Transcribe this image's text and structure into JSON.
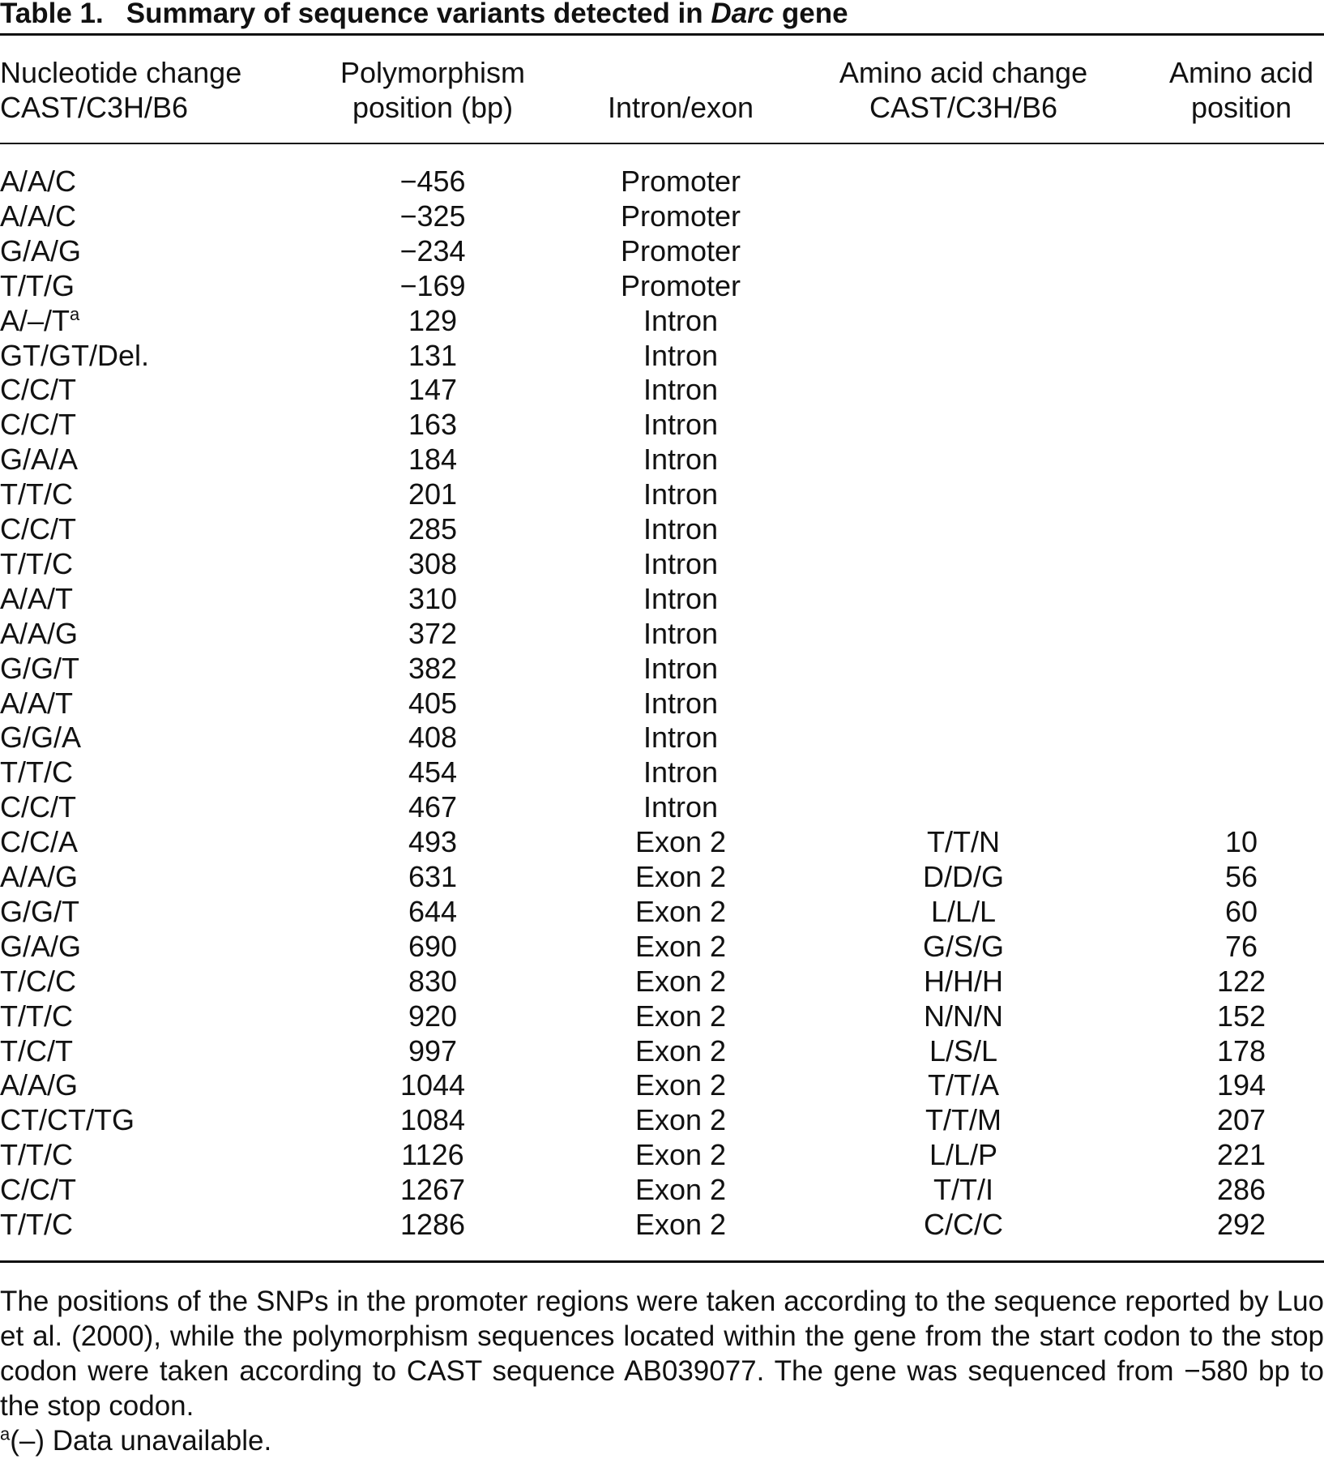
{
  "title": {
    "label": "Table 1.",
    "before": "Summary of sequence variants detected in ",
    "italic": "Darc",
    "after": " gene"
  },
  "table": {
    "header": [
      [
        "Nucleotide change",
        "CAST/C3H/B6"
      ],
      [
        "Polymorphism",
        "position (bp)"
      ],
      [
        "Intron/exon"
      ],
      [
        "Amino acid change",
        "CAST/C3H/B6"
      ],
      [
        "Amino acid",
        "position"
      ]
    ],
    "rows": [
      [
        "A/A/C",
        "−456",
        "Promoter"
      ],
      [
        "A/A/C",
        "−325",
        "Promoter"
      ],
      [
        "G/A/G",
        "−234",
        "Promoter"
      ],
      [
        "T/T/G",
        "−169",
        "Promoter"
      ],
      [
        {
          "text": "A/–/T",
          "sup": "a"
        },
        "129",
        "Intron"
      ],
      [
        "GT/GT/Del.",
        "131",
        "Intron"
      ],
      [
        "C/C/T",
        "147",
        "Intron"
      ],
      [
        "C/C/T",
        "163",
        "Intron"
      ],
      [
        "G/A/A",
        "184",
        "Intron"
      ],
      [
        "T/T/C",
        "201",
        "Intron"
      ],
      [
        "C/C/T",
        "285",
        "Intron"
      ],
      [
        "T/T/C",
        "308",
        "Intron"
      ],
      [
        "A/A/T",
        "310",
        "Intron"
      ],
      [
        "A/A/G",
        "372",
        "Intron"
      ],
      [
        "G/G/T",
        "382",
        "Intron"
      ],
      [
        "A/A/T",
        "405",
        "Intron"
      ],
      [
        "G/G/A",
        "408",
        "Intron"
      ],
      [
        "T/T/C",
        "454",
        "Intron"
      ],
      [
        "C/C/T",
        "467",
        "Intron"
      ],
      [
        "C/C/A",
        "493",
        "Exon 2",
        "T/T/N",
        "10"
      ],
      [
        "A/A/G",
        "631",
        "Exon 2",
        "D/D/G",
        "56"
      ],
      [
        "G/G/T",
        "644",
        "Exon 2",
        "L/L/L",
        "60"
      ],
      [
        "G/A/G",
        "690",
        "Exon 2",
        "G/S/G",
        "76"
      ],
      [
        "T/C/C",
        "830",
        "Exon 2",
        "H/H/H",
        "122"
      ],
      [
        "T/T/C",
        "920",
        "Exon 2",
        "N/N/N",
        "152"
      ],
      [
        "T/C/T",
        "997",
        "Exon 2",
        "L/S/L",
        "178"
      ],
      [
        "A/A/G",
        "1044",
        "Exon 2",
        "T/T/A",
        "194"
      ],
      [
        "CT/CT/TG",
        "1084",
        "Exon 2",
        "T/T/M",
        "207"
      ],
      [
        "T/T/C",
        "1126",
        "Exon 2",
        "L/L/P",
        "221"
      ],
      [
        "C/C/T",
        "1267",
        "Exon 2",
        "T/T/I",
        "286"
      ],
      [
        "T/T/C",
        "1286",
        "Exon 2",
        "C/C/C",
        "292"
      ]
    ]
  },
  "notes": {
    "paragraph": "The positions of the SNPs in the promoter regions were taken according to the sequence reported by Luo et al. (2000), while the polymorphism sequences located within the gene from the start codon to the stop codon were taken according to CAST sequence AB039077. The gene was sequenced from −580 bp to the stop codon.",
    "footnote": {
      "sup": "a",
      "text": "(–) Data unavailable."
    }
  }
}
